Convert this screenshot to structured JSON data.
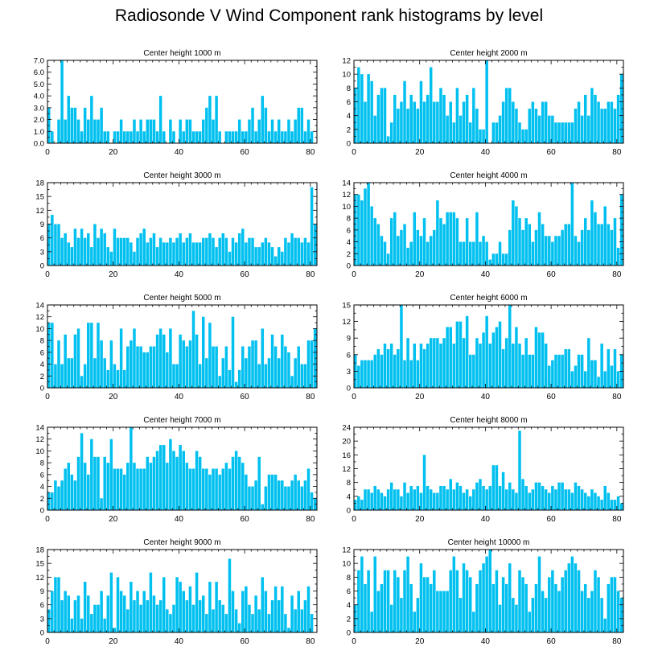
{
  "chart_data": {
    "type": "bar",
    "title": "Radiosonde V Wind Component rank histograms by level",
    "bar_color": "#00c0f0",
    "x_ticks": [
      0,
      20,
      40,
      60,
      80
    ],
    "xlim": [
      0,
      82
    ],
    "panels": [
      {
        "title": "Center height 1000 m",
        "ylim": [
          0,
          7
        ],
        "yticks": [
          "0.0",
          "1.0",
          "2.0",
          "3.0",
          "4.0",
          "5.0",
          "6.0",
          "7.0"
        ],
        "values": [
          3,
          1,
          0,
          2,
          7,
          2,
          4,
          3,
          3,
          2,
          1,
          3,
          2,
          4,
          2,
          2,
          3,
          1,
          1,
          0,
          1,
          1,
          2,
          1,
          1,
          1,
          2,
          1,
          2,
          1,
          2,
          2,
          2,
          1,
          4,
          1,
          0,
          2,
          1,
          0,
          2,
          1,
          2,
          2,
          1,
          1,
          1,
          2,
          3,
          4,
          2,
          4,
          1,
          0,
          1,
          1,
          1,
          1,
          2,
          1,
          1,
          2,
          3,
          1,
          2,
          4,
          3,
          1,
          2,
          1,
          2,
          1,
          1,
          2,
          1,
          2,
          3,
          3,
          1,
          2,
          1
        ],
        "value_labels_unread": true
      },
      {
        "title": "Center height 2000 m",
        "ylim": [
          0,
          12
        ],
        "yticks": [
          "0",
          "2",
          "4",
          "6",
          "8",
          "10",
          "12"
        ],
        "values": [
          8,
          11,
          10,
          6,
          10,
          9,
          4,
          7,
          8,
          8,
          1,
          3,
          7,
          5,
          6,
          9,
          5,
          7,
          6,
          5,
          9,
          6,
          7,
          11,
          6,
          6,
          8,
          7,
          4,
          6,
          3,
          8,
          4,
          6,
          7,
          3,
          8,
          5,
          2,
          2,
          12,
          0,
          3,
          3,
          4,
          6,
          8,
          8,
          6,
          5,
          3,
          2,
          2,
          5,
          6,
          5,
          4,
          6,
          6,
          4,
          4,
          3,
          3,
          3,
          3,
          3,
          3,
          5,
          6,
          4,
          7,
          4,
          8,
          7,
          6,
          5,
          5,
          6,
          6,
          5,
          7,
          10
        ],
        "value_labels_unread": true
      },
      {
        "title": "Center height 3000 m",
        "ylim": [
          0,
          18
        ],
        "yticks": [
          "0",
          "3",
          "6",
          "9",
          "12",
          "15",
          "18"
        ],
        "values": [
          9,
          11,
          9,
          9,
          6,
          7,
          5,
          4,
          8,
          6,
          8,
          6,
          7,
          4,
          9,
          6,
          8,
          7,
          4,
          3,
          8,
          6,
          6,
          6,
          6,
          5,
          3,
          6,
          7,
          8,
          5,
          6,
          7,
          4,
          6,
          5,
          5,
          6,
          5,
          6,
          7,
          5,
          6,
          7,
          5,
          5,
          5,
          6,
          6,
          7,
          6,
          4,
          6,
          7,
          6,
          3,
          6,
          5,
          7,
          8,
          5,
          6,
          6,
          4,
          4,
          5,
          6,
          5,
          4,
          2,
          4,
          3,
          6,
          5,
          7,
          6,
          6,
          5,
          6,
          5,
          17,
          9
        ],
        "value_labels_unread": true
      },
      {
        "title": "Center height 4000 m",
        "ylim": [
          0,
          14
        ],
        "yticks": [
          "0",
          "2",
          "4",
          "6",
          "8",
          "10",
          "12",
          "14"
        ],
        "values": [
          12,
          12,
          11,
          13,
          14,
          10,
          8,
          7,
          5,
          4,
          2,
          8,
          9,
          5,
          6,
          7,
          3,
          4,
          9,
          6,
          5,
          8,
          4,
          5,
          6,
          11,
          8,
          7,
          9,
          9,
          9,
          8,
          4,
          4,
          8,
          4,
          4,
          9,
          4,
          5,
          4,
          1,
          2,
          2,
          4,
          2,
          2,
          6,
          11,
          10,
          8,
          6,
          8,
          7,
          4,
          6,
          9,
          7,
          5,
          5,
          4,
          5,
          5,
          6,
          7,
          7,
          14,
          5,
          4,
          6,
          8,
          6,
          11,
          9,
          7,
          7,
          10,
          7,
          6,
          8,
          3,
          12
        ],
        "value_labels_unread": true
      },
      {
        "title": "Center height 5000 m",
        "ylim": [
          0,
          14
        ],
        "yticks": [
          "0",
          "2",
          "4",
          "6",
          "8",
          "10",
          "12",
          "14"
        ],
        "values": [
          11,
          11,
          4,
          8,
          4,
          9,
          5,
          5,
          9,
          10,
          2,
          4,
          11,
          11,
          5,
          11,
          8,
          5,
          3,
          8,
          4,
          3,
          10,
          3,
          7,
          8,
          10,
          7,
          7,
          6,
          6,
          7,
          7,
          9,
          10,
          9,
          6,
          10,
          4,
          4,
          9,
          8,
          7,
          8,
          13,
          9,
          4,
          12,
          5,
          11,
          7,
          7,
          2,
          5,
          7,
          3,
          12,
          1,
          3,
          7,
          5,
          7,
          8,
          8,
          4,
          10,
          4,
          5,
          9,
          7,
          5,
          9,
          7,
          6,
          2,
          5,
          7,
          4,
          4,
          8,
          8,
          10
        ],
        "value_labels_unread": true
      },
      {
        "title": "Center height 6000 m",
        "ylim": [
          0,
          15
        ],
        "yticks": [
          "0",
          "3",
          "6",
          "9",
          "12",
          "15"
        ],
        "values": [
          6,
          4,
          5,
          5,
          5,
          5,
          6,
          7,
          6,
          8,
          7,
          8,
          6,
          7,
          15,
          5,
          9,
          5,
          8,
          5,
          8,
          7,
          8,
          9,
          9,
          9,
          8,
          9,
          11,
          11,
          8,
          12,
          12,
          9,
          13,
          6,
          6,
          9,
          8,
          10,
          13,
          8,
          10,
          11,
          12,
          7,
          9,
          15,
          8,
          11,
          8,
          6,
          9,
          6,
          6,
          11,
          10,
          10,
          8,
          4,
          5,
          6,
          6,
          6,
          7,
          7,
          3,
          4,
          6,
          6,
          3,
          9,
          5,
          5,
          2,
          8,
          3,
          7,
          4,
          7,
          3,
          6
        ],
        "value_labels_unread": true
      },
      {
        "title": "Center height 7000 m",
        "ylim": [
          0,
          14
        ],
        "yticks": [
          "0",
          "2",
          "4",
          "6",
          "8",
          "10",
          "12",
          "14"
        ],
        "values": [
          3,
          3,
          5,
          4,
          5,
          7,
          8,
          6,
          5,
          9,
          13,
          8,
          6,
          12,
          9,
          9,
          2,
          9,
          8,
          12,
          7,
          7,
          7,
          6,
          8,
          14,
          8,
          7,
          7,
          7,
          9,
          8,
          9,
          10,
          11,
          11,
          8,
          12,
          10,
          9,
          11,
          10,
          8,
          7,
          7,
          10,
          9,
          7,
          7,
          6,
          7,
          7,
          6,
          7,
          8,
          7,
          9,
          10,
          9,
          8,
          6,
          4,
          4,
          5,
          9,
          1,
          4,
          6,
          6,
          6,
          5,
          5,
          4,
          4,
          5,
          6,
          5,
          4,
          5,
          7,
          3,
          2
        ],
        "value_labels_unread": true
      },
      {
        "title": "Center height 8000 m",
        "ylim": [
          0,
          24
        ],
        "yticks": [
          "0",
          "4",
          "8",
          "12",
          "16",
          "20",
          "24"
        ],
        "values": [
          3,
          4,
          3,
          6,
          6,
          5,
          7,
          6,
          5,
          4,
          6,
          8,
          6,
          6,
          4,
          8,
          5,
          7,
          6,
          7,
          5,
          16,
          7,
          6,
          5,
          5,
          7,
          7,
          6,
          9,
          6,
          8,
          7,
          5,
          6,
          4,
          6,
          8,
          9,
          7,
          6,
          7,
          13,
          13,
          7,
          11,
          6,
          8,
          6,
          5,
          23,
          9,
          7,
          5,
          6,
          8,
          8,
          7,
          6,
          5,
          7,
          6,
          8,
          8,
          6,
          6,
          5,
          8,
          7,
          6,
          5,
          4,
          6,
          5,
          4,
          3,
          7,
          5,
          3,
          3,
          4,
          2
        ],
        "value_labels_unread": true
      },
      {
        "title": "Center height 9000 m",
        "ylim": [
          0,
          18
        ],
        "yticks": [
          "0",
          "3",
          "6",
          "9",
          "12",
          "15",
          "18"
        ],
        "values": [
          5,
          9,
          12,
          12,
          7,
          9,
          8,
          3,
          7,
          8,
          3,
          11,
          8,
          4,
          6,
          6,
          9,
          3,
          8,
          13,
          1,
          12,
          9,
          8,
          5,
          11,
          7,
          9,
          6,
          9,
          7,
          13,
          8,
          6,
          7,
          12,
          5,
          4,
          6,
          12,
          11,
          9,
          7,
          10,
          6,
          13,
          7,
          8,
          4,
          11,
          5,
          11,
          7,
          6,
          4,
          16,
          9,
          5,
          2,
          9,
          10,
          6,
          4,
          8,
          5,
          12,
          9,
          4,
          7,
          10,
          7,
          10,
          4,
          1,
          8,
          5,
          9,
          5,
          7,
          10,
          4
        ],
        "value_labels_unread": true
      },
      {
        "title": "Center height 10000 m",
        "ylim": [
          0,
          12
        ],
        "yticks": [
          "0",
          "2",
          "4",
          "6",
          "8",
          "10",
          "12"
        ],
        "values": [
          4,
          9,
          11,
          7,
          9,
          3,
          11,
          6,
          7,
          9,
          9,
          4,
          9,
          8,
          5,
          9,
          11,
          7,
          3,
          5,
          10,
          8,
          8,
          7,
          9,
          6,
          6,
          6,
          6,
          9,
          11,
          9,
          5,
          10,
          9,
          8,
          3,
          7,
          9,
          10,
          11,
          12,
          7,
          9,
          4,
          8,
          7,
          10,
          5,
          4,
          9,
          8,
          7,
          3,
          5,
          7,
          11,
          6,
          5,
          8,
          9,
          7,
          6,
          8,
          9,
          10,
          11,
          10,
          9,
          6,
          7,
          5,
          6,
          9,
          8,
          5,
          2,
          7,
          8,
          8,
          6,
          5
        ],
        "value_labels_unread": true
      }
    ]
  }
}
